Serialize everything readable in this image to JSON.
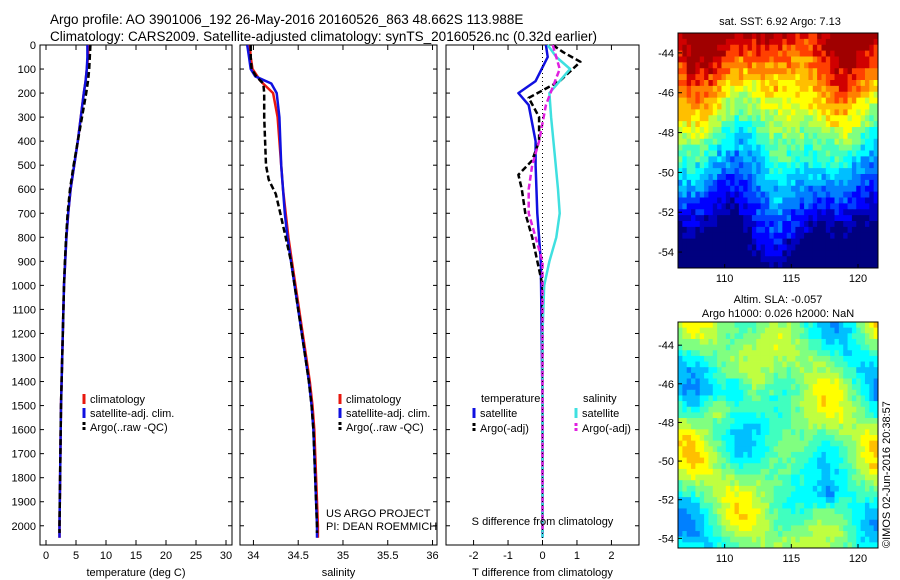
{
  "header": {
    "title1": "Argo profile: AO 3901006_192 26-May-2016 20160526_863 48.662S 113.988E",
    "title2": "Climatology: CARS2009. Satellite-adjusted climatology: synTS_20160526.nc (0.32d earlier)"
  },
  "colors": {
    "climatology": "#e8170e",
    "satellite_adj": "#1010e0",
    "argo": "#000000",
    "sal_satellite": "#3fe0e0",
    "sal_argo": "#e020e0"
  },
  "chart_data": [
    {
      "type": "line",
      "panel": "temperature",
      "xlabel": "temperature (deg C)",
      "ylabel": "",
      "xlim": [
        -1,
        31
      ],
      "ylim": [
        2080,
        0
      ],
      "xticks": [
        "0",
        "5",
        "10",
        "15",
        "20",
        "25",
        "30"
      ],
      "yticks": [
        "0",
        "100",
        "200",
        "300",
        "400",
        "500",
        "600",
        "700",
        "800",
        "900",
        "1000",
        "1100",
        "1200",
        "1300",
        "1400",
        "1500",
        "1600",
        "1700",
        "1800",
        "1900",
        "2000"
      ],
      "legend": [
        "climatology",
        "satellite-adj. clim.",
        "Argo(..raw -QC)"
      ],
      "series": [
        {
          "name": "climatology",
          "color": "#e8170e",
          "style": "solid",
          "points": [
            [
              7.1,
              0
            ],
            [
              7.0,
              50
            ],
            [
              6.8,
              100
            ],
            [
              6.6,
              150
            ],
            [
              6.3,
              200
            ],
            [
              5.8,
              300
            ],
            [
              5.3,
              400
            ],
            [
              4.7,
              500
            ],
            [
              4.1,
              600
            ],
            [
              3.7,
              700
            ],
            [
              3.4,
              800
            ],
            [
              3.2,
              900
            ],
            [
              3.0,
              1000
            ],
            [
              2.9,
              1100
            ],
            [
              2.8,
              1200
            ],
            [
              2.7,
              1300
            ],
            [
              2.6,
              1400
            ],
            [
              2.5,
              1500
            ],
            [
              2.45,
              1600
            ],
            [
              2.4,
              1700
            ],
            [
              2.35,
              1800
            ],
            [
              2.3,
              1900
            ],
            [
              2.25,
              2000
            ],
            [
              2.25,
              2050
            ]
          ]
        },
        {
          "name": "satellite-adj. clim.",
          "color": "#1010e0",
          "style": "solid",
          "points": [
            [
              6.9,
              0
            ],
            [
              6.9,
              50
            ],
            [
              6.8,
              100
            ],
            [
              6.6,
              150
            ],
            [
              6.3,
              200
            ],
            [
              5.8,
              300
            ],
            [
              5.3,
              400
            ],
            [
              4.7,
              500
            ],
            [
              4.1,
              600
            ],
            [
              3.7,
              700
            ],
            [
              3.4,
              800
            ],
            [
              3.2,
              900
            ],
            [
              3.0,
              1000
            ],
            [
              2.9,
              1100
            ],
            [
              2.8,
              1200
            ],
            [
              2.7,
              1300
            ],
            [
              2.6,
              1400
            ],
            [
              2.5,
              1500
            ],
            [
              2.45,
              1600
            ],
            [
              2.4,
              1700
            ],
            [
              2.35,
              1800
            ],
            [
              2.3,
              1900
            ],
            [
              2.25,
              2000
            ],
            [
              2.25,
              2050
            ]
          ]
        },
        {
          "name": "Argo(..raw -QC)",
          "color": "#000000",
          "style": "dashed",
          "points": [
            [
              7.4,
              0
            ],
            [
              7.3,
              50
            ],
            [
              7.2,
              100
            ],
            [
              7.0,
              150
            ],
            [
              6.7,
              200
            ],
            [
              6.0,
              300
            ],
            [
              5.3,
              400
            ],
            [
              4.6,
              500
            ],
            [
              4.0,
              600
            ],
            [
              3.6,
              700
            ],
            [
              3.35,
              800
            ],
            [
              3.15,
              900
            ],
            [
              3.0,
              1000
            ],
            [
              2.9,
              1100
            ],
            [
              2.8,
              1200
            ],
            [
              2.7,
              1300
            ],
            [
              2.6,
              1400
            ],
            [
              2.5,
              1500
            ],
            [
              2.45,
              1600
            ],
            [
              2.4,
              1700
            ],
            [
              2.35,
              1800
            ],
            [
              2.3,
              1900
            ],
            [
              2.25,
              2000
            ],
            [
              2.25,
              2030
            ]
          ]
        }
      ]
    },
    {
      "type": "line",
      "panel": "salinity",
      "xlabel": "salinity",
      "ylabel": "",
      "xlim": [
        33.85,
        36.05
      ],
      "ylim": [
        2080,
        0
      ],
      "xticks": [
        "34",
        "34.5",
        "35",
        "35.5",
        "36"
      ],
      "legend": [
        "climatology",
        "satellite-adj. clim.",
        "Argo(..raw -QC)"
      ],
      "annotation": [
        "US ARGO PROJECT",
        "PI: DEAN ROEMMICH"
      ],
      "series": [
        {
          "name": "climatology",
          "color": "#e8170e",
          "style": "solid",
          "points": [
            [
              33.96,
              0
            ],
            [
              33.97,
              50
            ],
            [
              33.99,
              100
            ],
            [
              34.08,
              150
            ],
            [
              34.22,
              200
            ],
            [
              34.27,
              300
            ],
            [
              34.29,
              400
            ],
            [
              34.31,
              500
            ],
            [
              34.33,
              600
            ],
            [
              34.36,
              700
            ],
            [
              34.39,
              800
            ],
            [
              34.43,
              900
            ],
            [
              34.47,
              1000
            ],
            [
              34.51,
              1100
            ],
            [
              34.55,
              1200
            ],
            [
              34.59,
              1300
            ],
            [
              34.63,
              1400
            ],
            [
              34.66,
              1500
            ],
            [
              34.68,
              1600
            ],
            [
              34.69,
              1700
            ],
            [
              34.7,
              1800
            ],
            [
              34.71,
              1900
            ],
            [
              34.72,
              2000
            ],
            [
              34.72,
              2050
            ]
          ]
        },
        {
          "name": "satellite-adj. clim.",
          "color": "#1010e0",
          "style": "solid",
          "points": [
            [
              33.93,
              0
            ],
            [
              33.95,
              50
            ],
            [
              33.97,
              100
            ],
            [
              34.02,
              130
            ],
            [
              34.2,
              160
            ],
            [
              34.26,
              200
            ],
            [
              34.29,
              300
            ],
            [
              34.3,
              400
            ],
            [
              34.31,
              500
            ],
            [
              34.33,
              600
            ],
            [
              34.35,
              700
            ],
            [
              34.38,
              800
            ],
            [
              34.42,
              900
            ],
            [
              34.46,
              1000
            ],
            [
              34.5,
              1100
            ],
            [
              34.54,
              1200
            ],
            [
              34.58,
              1300
            ],
            [
              34.62,
              1400
            ],
            [
              34.65,
              1500
            ],
            [
              34.67,
              1600
            ],
            [
              34.68,
              1700
            ],
            [
              34.69,
              1800
            ],
            [
              34.7,
              1900
            ],
            [
              34.71,
              2000
            ],
            [
              34.71,
              2050
            ]
          ]
        },
        {
          "name": "Argo(..raw -QC)",
          "color": "#000000",
          "style": "dashed",
          "points": [
            [
              33.97,
              0
            ],
            [
              33.97,
              50
            ],
            [
              33.98,
              100
            ],
            [
              34.03,
              130
            ],
            [
              34.11,
              160
            ],
            [
              34.12,
              200
            ],
            [
              34.12,
              300
            ],
            [
              34.13,
              400
            ],
            [
              34.14,
              500
            ],
            [
              34.17,
              560
            ],
            [
              34.25,
              620
            ],
            [
              34.3,
              700
            ],
            [
              34.36,
              800
            ],
            [
              34.42,
              900
            ],
            [
              34.46,
              1000
            ],
            [
              34.5,
              1100
            ],
            [
              34.54,
              1200
            ],
            [
              34.58,
              1300
            ],
            [
              34.62,
              1400
            ],
            [
              34.65,
              1500
            ],
            [
              34.67,
              1600
            ],
            [
              34.68,
              1700
            ],
            [
              34.69,
              1800
            ],
            [
              34.7,
              1900
            ],
            [
              34.71,
              2000
            ],
            [
              34.71,
              2030
            ]
          ]
        }
      ]
    },
    {
      "type": "line",
      "panel": "difference",
      "xlabel": "T difference from climatology",
      "xlabel2": "S difference from climatology",
      "ylabel": "",
      "xlim": [
        -2.8,
        2.8
      ],
      "ylim": [
        2080,
        0
      ],
      "xticks": [
        "-2",
        "-1",
        "0",
        "1",
        "2"
      ],
      "xticks2": [
        "-0.5",
        "-0.25",
        "0",
        "0.25",
        "0.5"
      ],
      "legend_headers": [
        "temperature",
        "salinity"
      ],
      "legend": [
        "satellite",
        "Argo(-adj)",
        "satellite",
        "Argo(-adj)"
      ],
      "series": [
        {
          "name": "temperature satellite",
          "color": "#1010e0",
          "style": "solid",
          "points": [
            [
              0.1,
              0
            ],
            [
              0.15,
              50
            ],
            [
              -0.2,
              150
            ],
            [
              -0.7,
              200
            ],
            [
              -0.4,
              250
            ],
            [
              -0.2,
              400
            ],
            [
              -0.2,
              500
            ],
            [
              -0.15,
              700
            ],
            [
              -0.05,
              900
            ],
            [
              0,
              1500
            ],
            [
              0,
              2050
            ]
          ]
        },
        {
          "name": "temperature Argo(-adj)",
          "color": "#000000",
          "style": "dashed",
          "points": [
            [
              0.3,
              0
            ],
            [
              0.6,
              30
            ],
            [
              1.1,
              70
            ],
            [
              0.5,
              150
            ],
            [
              -0.4,
              220
            ],
            [
              -0.1,
              300
            ],
            [
              -0.1,
              400
            ],
            [
              -0.3,
              480
            ],
            [
              -0.7,
              540
            ],
            [
              -0.6,
              600
            ],
            [
              -0.5,
              700
            ],
            [
              -0.3,
              800
            ],
            [
              0,
              1000
            ],
            [
              0,
              2030
            ]
          ]
        },
        {
          "name": "salinity satellite",
          "color": "#3fe0e0",
          "style": "solid",
          "points": [
            [
              0.15,
              0
            ],
            [
              0.4,
              50
            ],
            [
              0.8,
              100
            ],
            [
              0.2,
              200
            ],
            [
              0.25,
              300
            ],
            [
              0.35,
              450
            ],
            [
              0.45,
              600
            ],
            [
              0.5,
              700
            ],
            [
              0.4,
              800
            ],
            [
              0.2,
              900
            ],
            [
              0.05,
              1000
            ],
            [
              0,
              1200
            ],
            [
              0,
              1500
            ],
            [
              0,
              2050
            ]
          ]
        },
        {
          "name": "salinity Argo(-adj)",
          "color": "#e020e0",
          "style": "dashed",
          "points": [
            [
              0.3,
              0
            ],
            [
              0.5,
              100
            ],
            [
              0.1,
              250
            ],
            [
              -0.1,
              400
            ],
            [
              -0.3,
              500
            ],
            [
              -0.4,
              600
            ],
            [
              -0.4,
              700
            ],
            [
              -0.2,
              800
            ],
            [
              0,
              900
            ],
            [
              0,
              2030
            ]
          ]
        }
      ]
    },
    {
      "type": "heatmap",
      "panel": "sst-map",
      "title": "sat. SST: 6.92 Argo: 7.13",
      "xlim": [
        106.5,
        121.5
      ],
      "ylim": [
        -54.8,
        -43
      ],
      "xticks": [
        "110",
        "115",
        "120"
      ],
      "yticks": [
        "-44",
        "-46",
        "-48",
        "-50",
        "-52",
        "-54"
      ]
    },
    {
      "type": "heatmap",
      "panel": "sla-map",
      "title": "Altim. SLA: -0.057",
      "subtitle": "Argo h1000: 0.026 h2000: NaN",
      "xlim": [
        106.5,
        121.5
      ],
      "ylim": [
        -54.5,
        -42.8
      ],
      "xticks": [
        "110",
        "115",
        "120"
      ],
      "yticks": [
        "-44",
        "-46",
        "-48",
        "-50",
        "-52",
        "-54"
      ]
    }
  ],
  "footer": {
    "credit": "©IMOS 02-Jun-2016 20:38:57"
  }
}
